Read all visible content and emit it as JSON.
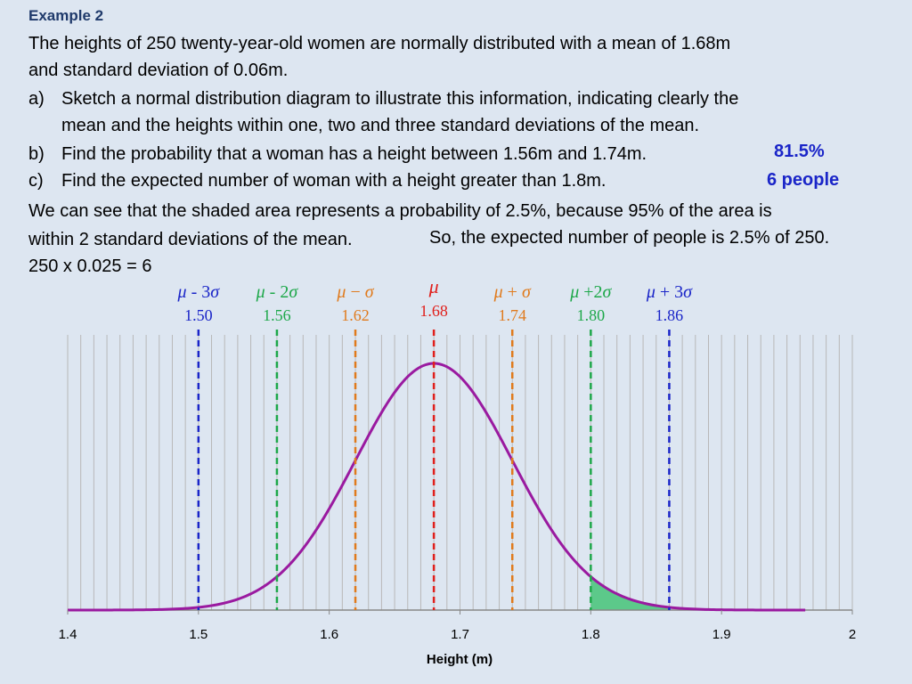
{
  "heading": "Example 2",
  "problem": {
    "line1": "The heights of 250 twenty-year-old women are normally distributed with a mean of 1.68m",
    "line2": "and standard deviation of 0.06m.",
    "a_marker": "a)",
    "a_line1": "Sketch a normal distribution diagram to illustrate this information, indicating clearly the",
    "a_line2": "mean and the heights within one, two and three standard deviations of the mean.",
    "b_marker": "b)",
    "b_text": "Find the probability that a woman has a height between 1.56m and 1.74m.",
    "b_answer": "81.5%",
    "c_marker": "c)",
    "c_text": "Find the expected number of woman with a height greater than 1.8m.",
    "c_answer": "6 people",
    "explain1": "We can see that the shaded area represents a probability of 2.5%, because 95% of the area is",
    "explain2a": "within 2 standard deviations of the mean.",
    "explain2b": "So, the expected number of people is 2.5% of 250.",
    "explain3": "250 x 0.025 = 6"
  },
  "colors": {
    "curve": "#9a1aa0",
    "shade": "#5cc98a",
    "sd3": "#1a25c8",
    "sd2": "#1ea84a",
    "sd1": "#e07a1c",
    "mean": "#e0201c",
    "grid": "#b8b8b8"
  },
  "chart_data": {
    "type": "area",
    "title": "",
    "xlabel": "Height (m)",
    "ylabel": "",
    "xlim": [
      1.4,
      2.0
    ],
    "xticks": [
      "1.4",
      "1.5",
      "1.6",
      "1.7",
      "1.8",
      "1.9",
      "2"
    ],
    "mean": 1.68,
    "sd": 0.06,
    "curve_x_range": [
      1.4,
      1.965
    ],
    "shaded_range": [
      1.8,
      1.86
    ],
    "markers": [
      {
        "label_parts": [
          "μ",
          " - 3",
          "σ"
        ],
        "value": 1.5,
        "value_label": "1.50",
        "color_key": "sd3"
      },
      {
        "label_parts": [
          "μ",
          " - 2",
          "σ"
        ],
        "value": 1.56,
        "value_label": "1.56",
        "color_key": "sd2"
      },
      {
        "label_parts": [
          "μ",
          " − ",
          "σ"
        ],
        "value": 1.62,
        "value_label": "1.62",
        "color_key": "sd1"
      },
      {
        "label_parts": [
          "μ",
          "",
          ""
        ],
        "value": 1.68,
        "value_label": "1.68",
        "color_key": "mean"
      },
      {
        "label_parts": [
          "μ",
          " + ",
          "σ"
        ],
        "value": 1.74,
        "value_label": "1.74",
        "color_key": "sd1"
      },
      {
        "label_parts": [
          "μ",
          " +2",
          "σ"
        ],
        "value": 1.8,
        "value_label": "1.80",
        "color_key": "sd2"
      },
      {
        "label_parts": [
          "μ",
          " + 3",
          "σ"
        ],
        "value": 1.86,
        "value_label": "1.86",
        "color_key": "sd3"
      }
    ]
  }
}
